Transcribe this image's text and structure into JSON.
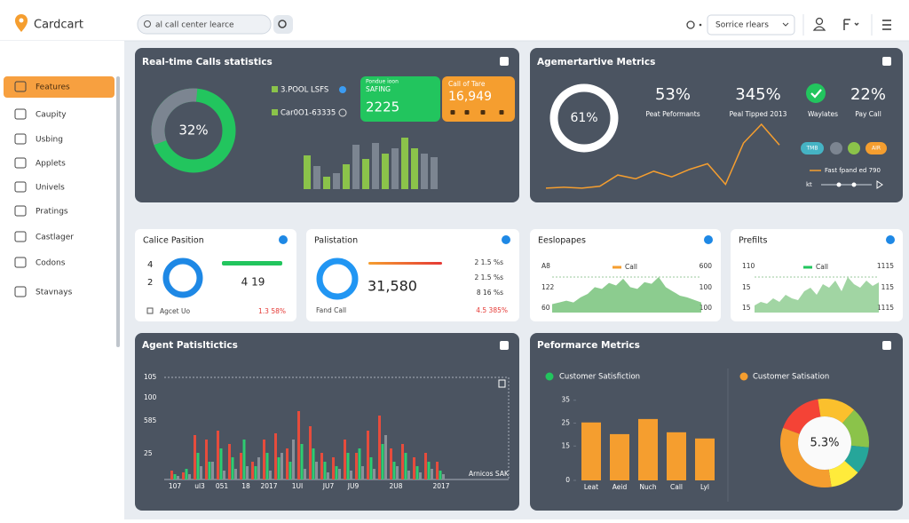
{
  "header": {
    "brand": "Cardcart",
    "search": "al call center learce",
    "filter": "Sorrice rlears"
  },
  "sidebar": {
    "items": [
      "Features",
      "Caupity",
      "Usbing",
      "Applets",
      "Univels",
      "Pratings",
      "Castlager",
      "Codons",
      "Stavnays"
    ],
    "active": 0
  },
  "realtime": {
    "title": "Real-time Calls statistics",
    "donut": {
      "label": "32%",
      "value": 32,
      "colors": [
        "#7c8591",
        "#22c55e"
      ]
    },
    "legend": [
      "3.POOL LSFS",
      "Car0O1-63335"
    ],
    "green_card": {
      "caption": "Pondue ioon",
      "label": "SAFING",
      "value": "2225"
    },
    "orange_card": {
      "label": "Call of Tare",
      "value": "16,949"
    },
    "bars": {
      "values": [
        38,
        26,
        14,
        18,
        28,
        50,
        34,
        52,
        40,
        46,
        58,
        46,
        40,
        36
      ],
      "colors": [
        "#8bc34a",
        "#7c8591",
        "#8bc34a",
        "#7c8591",
        "#8bc34a",
        "#7c8591",
        "#8bc34a",
        "#7c8591",
        "#8bc34a",
        "#7c8591",
        "#8bc34a",
        "#8bc34a",
        "#7c8591",
        "#7c8591"
      ]
    }
  },
  "metrics": {
    "title": "Agemertartive Metrics",
    "ring": "61%",
    "stats": [
      {
        "value": "53%",
        "label": "Peat Peformants"
      },
      {
        "value": "345%",
        "label": "Peal Tipped 2013"
      },
      {
        "label": "Waylates"
      },
      {
        "value": "22%",
        "label": "Pay Call"
      }
    ],
    "pills": [
      "TMB",
      "AIR"
    ],
    "legend": "Fast fpand ed 790",
    "player": "kt",
    "line": {
      "values": [
        2,
        3,
        2,
        4,
        16,
        12,
        20,
        14,
        22,
        28,
        6,
        50,
        70,
        48
      ],
      "color": "#f59e2f"
    }
  },
  "cards": {
    "position": {
      "title": "Calice Pasition",
      "left": [
        "4",
        "2"
      ],
      "value": "4 19",
      "footer": "Agcet Uo",
      "footer_value": "1.3 58%"
    },
    "palistation": {
      "title": "Palistation",
      "value": "31,580",
      "right": [
        "2 1.5 %s",
        "2 1.5 %s",
        "8 16 %s"
      ],
      "footer": "Fand Call",
      "footer_value": "4.5 385%"
    },
    "eeslopapes": {
      "title": "Eeslopapes",
      "left": [
        "A8",
        "122",
        "60"
      ],
      "legend": "Call",
      "legend_color": "#f59e2f",
      "right": [
        "600",
        "100",
        "100"
      ],
      "area": {
        "values": [
          10,
          12,
          14,
          12,
          18,
          22,
          30,
          28,
          35,
          32,
          40,
          30,
          28,
          36,
          34,
          42,
          30,
          25,
          20,
          18,
          15,
          12
        ],
        "color": "#66bb6a"
      }
    },
    "prefilts": {
      "title": "Prefilts",
      "left": [
        "110",
        "15",
        "15"
      ],
      "legend": "Call",
      "legend_color": "#22c55e",
      "right": [
        "1115",
        "115",
        "1115"
      ],
      "area": {
        "values": [
          4,
          6,
          5,
          8,
          6,
          10,
          8,
          7,
          12,
          14,
          10,
          16,
          14,
          18,
          12,
          20,
          16,
          14,
          18,
          15,
          17
        ],
        "color": "#81c784"
      }
    }
  },
  "agents": {
    "title": "Agent Patisltictics",
    "ylabels": [
      "105",
      "100",
      "585",
      "25"
    ],
    "xlabels": [
      "107",
      "ul3",
      "051",
      "18",
      "2017",
      "1UI",
      "JU7",
      "JU9",
      "2U8",
      "2017"
    ],
    "note": "Arnicos SAK",
    "series": [
      {
        "color": "#e74c3c",
        "values": [
          10,
          8,
          50,
          45,
          55,
          40,
          30,
          20,
          45,
          52,
          35,
          77,
          60,
          30,
          25,
          45,
          30,
          55,
          72,
          35,
          40,
          25,
          30,
          20
        ]
      },
      {
        "color": "#2ecc71",
        "values": [
          6,
          12,
          30,
          20,
          35,
          25,
          45,
          15,
          30,
          25,
          20,
          40,
          35,
          20,
          15,
          30,
          35,
          25,
          40,
          20,
          30,
          15,
          20,
          10
        ]
      },
      {
        "color": "#8a9099",
        "values": [
          4,
          6,
          15,
          20,
          10,
          12,
          15,
          25,
          10,
          30,
          45,
          12,
          20,
          8,
          12,
          10,
          15,
          12,
          50,
          15,
          10,
          8,
          12,
          6
        ]
      }
    ]
  },
  "performance": {
    "title": "Peformarce Metrics",
    "legend": [
      {
        "name": "Customer Satisfiction",
        "color": "#22c55e"
      },
      {
        "name": "Customer Satisation",
        "color": "#f59e2f"
      }
    ],
    "bars": {
      "categories": [
        "Leat",
        "Aeid",
        "Nuch",
        "Call",
        "Lyl"
      ],
      "values": [
        25.3,
        20.2,
        26.8,
        21,
        18.3
      ],
      "color": "#f59e2f",
      "ylim": [
        0,
        38
      ],
      "yticks": [
        0,
        15,
        25,
        35
      ]
    },
    "donut": {
      "label": "5.3%",
      "values": [
        17,
        14,
        15,
        10,
        11,
        33
      ],
      "colors": [
        "#f44336",
        "#fbc02d",
        "#8bc34a",
        "#26a69a",
        "#ffeb3b",
        "#f59e2f"
      ]
    }
  }
}
